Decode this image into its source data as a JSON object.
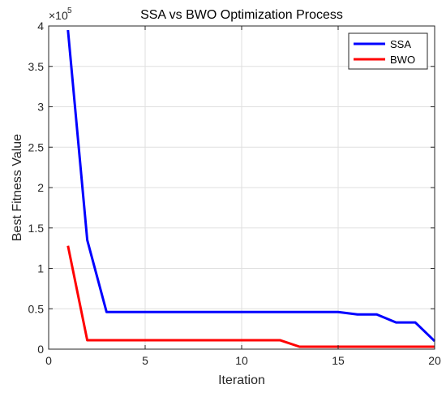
{
  "chart_data": {
    "type": "line",
    "title": "SSA vs BWO Optimization Process",
    "xlabel": "Iteration",
    "ylabel": "Best Fitness Value",
    "y_exponent_label": "×10",
    "y_exponent_power": "5",
    "xlim": [
      0,
      20
    ],
    "ylim": [
      0,
      4
    ],
    "y_scale_note": "values in units of 10^5",
    "x_ticks": [
      0,
      5,
      10,
      15,
      20
    ],
    "x_tick_labels": [
      "0",
      "5",
      "10",
      "15",
      "20"
    ],
    "y_ticks": [
      0,
      0.5,
      1,
      1.5,
      2,
      2.5,
      3,
      3.5,
      4
    ],
    "y_tick_labels": [
      "0",
      "0.5",
      "1",
      "1.5",
      "2",
      "2.5",
      "3",
      "3.5",
      "4"
    ],
    "grid": true,
    "legend_position": "top-right",
    "series": [
      {
        "name": "SSA",
        "color": "#0000ff",
        "x": [
          1,
          2,
          3,
          4,
          5,
          6,
          7,
          8,
          9,
          10,
          11,
          12,
          13,
          14,
          15,
          16,
          17,
          18,
          19,
          20
        ],
        "y": [
          3.95,
          1.35,
          0.46,
          0.46,
          0.46,
          0.46,
          0.46,
          0.46,
          0.46,
          0.46,
          0.46,
          0.46,
          0.46,
          0.46,
          0.46,
          0.43,
          0.43,
          0.33,
          0.33,
          0.1
        ]
      },
      {
        "name": "BWO",
        "color": "#ff0000",
        "x": [
          1,
          2,
          3,
          4,
          5,
          6,
          7,
          8,
          9,
          10,
          11,
          12,
          13,
          14,
          15,
          16,
          17,
          18,
          19,
          20
        ],
        "y": [
          1.28,
          0.11,
          0.11,
          0.11,
          0.11,
          0.11,
          0.11,
          0.11,
          0.11,
          0.11,
          0.11,
          0.11,
          0.03,
          0.03,
          0.03,
          0.03,
          0.03,
          0.03,
          0.03,
          0.03
        ]
      }
    ]
  }
}
